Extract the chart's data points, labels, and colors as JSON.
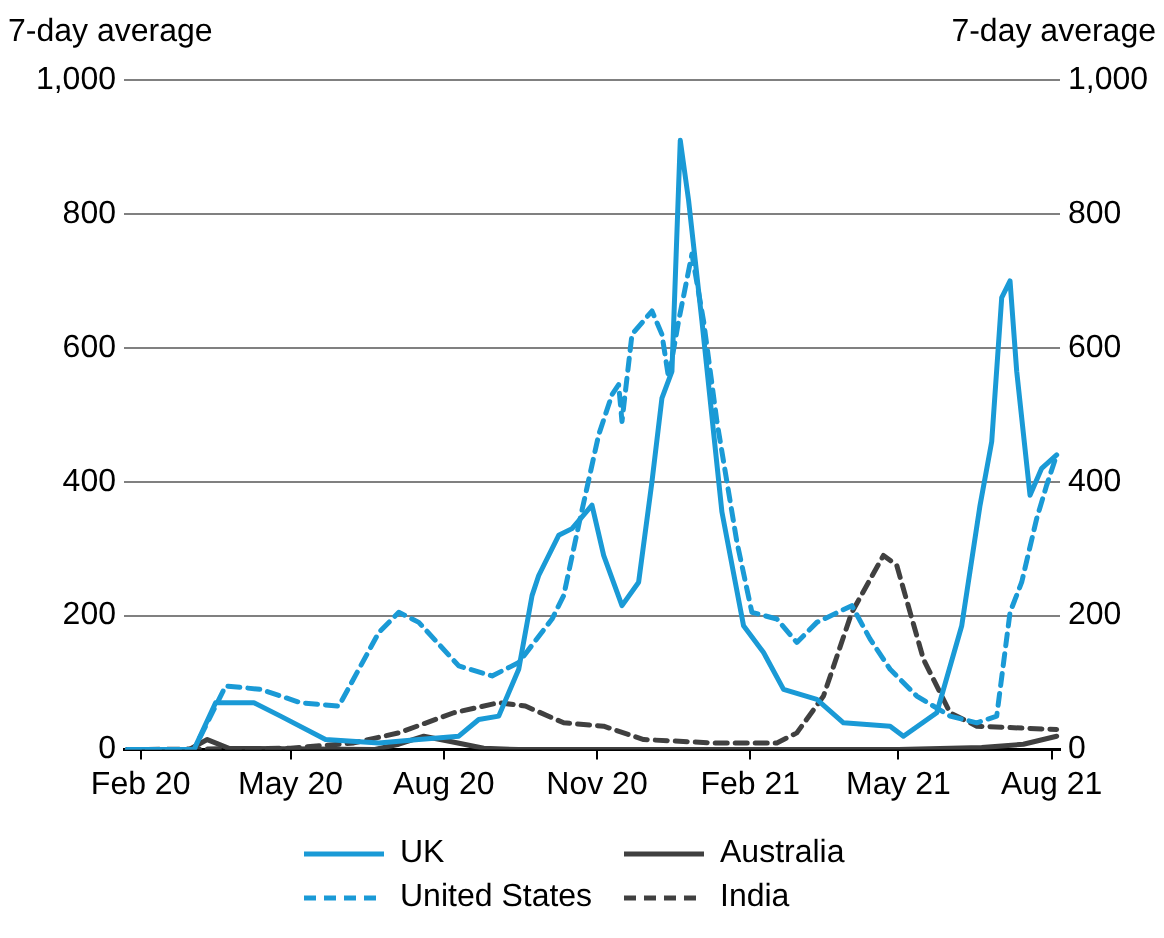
{
  "chart_data": {
    "type": "line",
    "ylabel": "7-day average",
    "y2label": "7-day average",
    "xlim": [
      "2020-01-22",
      "2021-08-06"
    ],
    "xticks": [
      {
        "value": "2020-02-01",
        "label": "Feb 20"
      },
      {
        "value": "2020-05-01",
        "label": "May 20"
      },
      {
        "value": "2020-08-01",
        "label": "Aug 20"
      },
      {
        "value": "2020-11-01",
        "label": "Nov 20"
      },
      {
        "value": "2021-02-01",
        "label": "Feb 21"
      },
      {
        "value": "2021-05-01",
        "label": "May 21"
      },
      {
        "value": "2021-08-01",
        "label": "Aug 21"
      }
    ],
    "ylim": [
      0,
      1000
    ],
    "yticks": [
      0,
      200,
      400,
      600,
      800,
      {
        "value": 1000,
        "label": "1,000"
      }
    ],
    "y2lim": [
      0,
      1000
    ],
    "y2ticks": [
      0,
      200,
      400,
      600,
      800,
      {
        "value": 1000,
        "label": "1,000"
      }
    ],
    "grid": "y",
    "legend": "bottom",
    "marker": "none",
    "series": [
      {
        "name": "UK",
        "color": "#1a9ad6",
        "line_style": "solid",
        "x": [
          "2020-01-24",
          "2020-03-04",
          "2020-03-17",
          "2020-04-09",
          "2020-04-25",
          "2020-05-22",
          "2020-06-23",
          "2020-07-17",
          "2020-08-10",
          "2020-08-22",
          "2020-09-03",
          "2020-09-15",
          "2020-09-23",
          "2020-09-27",
          "2020-10-09",
          "2020-10-17",
          "2020-10-29",
          "2020-11-05",
          "2020-11-16",
          "2020-11-26",
          "2020-12-04",
          "2020-12-10",
          "2020-12-16",
          "2020-12-21",
          "2020-12-26",
          "2021-01-03",
          "2021-01-15",
          "2021-01-28",
          "2021-02-09",
          "2021-02-21",
          "2021-03-13",
          "2021-03-29",
          "2021-04-26",
          "2021-05-04",
          "2021-05-24",
          "2021-06-08",
          "2021-06-19",
          "2021-06-26",
          "2021-07-02",
          "2021-07-07",
          "2021-07-11",
          "2021-07-19",
          "2021-07-26",
          "2021-08-04"
        ],
        "values": [
          0,
          0,
          70,
          70,
          50,
          15,
          10,
          15,
          20,
          45,
          50,
          120,
          230,
          260,
          320,
          330,
          365,
          290,
          215,
          250,
          400,
          525,
          565,
          910,
          820,
          640,
          355,
          185,
          145,
          90,
          75,
          40,
          35,
          20,
          55,
          185,
          365,
          460,
          675,
          700,
          565,
          380,
          420,
          440
        ]
      },
      {
        "name": "Australia",
        "color": "#404040",
        "line_style": "solid",
        "x": [
          "2020-01-24",
          "2020-03-01",
          "2020-03-12",
          "2020-03-25",
          "2020-06-20",
          "2020-07-05",
          "2020-07-20",
          "2020-08-05",
          "2020-08-25",
          "2020-09-15",
          "2021-05-01",
          "2021-06-20",
          "2021-07-15",
          "2021-08-04"
        ],
        "values": [
          0,
          0,
          15,
          2,
          0,
          8,
          20,
          12,
          2,
          0,
          0,
          3,
          8,
          20
        ]
      },
      {
        "name": "United States",
        "color": "#1a9ad6",
        "line_style": "dashed",
        "x": [
          "2020-01-24",
          "2020-03-04",
          "2020-03-23",
          "2020-04-13",
          "2020-05-07",
          "2020-05-30",
          "2020-06-11",
          "2020-06-23",
          "2020-07-05",
          "2020-07-17",
          "2020-08-10",
          "2020-08-30",
          "2020-09-15",
          "2020-10-05",
          "2020-10-12",
          "2020-10-21",
          "2020-11-02",
          "2020-11-10",
          "2020-11-14",
          "2020-11-16",
          "2020-11-22",
          "2020-12-04",
          "2020-12-10",
          "2020-12-14",
          "2020-12-20",
          "2020-12-28",
          "2021-01-04",
          "2021-01-12",
          "2021-01-24",
          "2021-02-02",
          "2021-02-17",
          "2021-03-01",
          "2021-03-13",
          "2021-04-03",
          "2021-04-14",
          "2021-04-26",
          "2021-05-12",
          "2021-06-01",
          "2021-06-17",
          "2021-06-29",
          "2021-07-07",
          "2021-07-14",
          "2021-07-23",
          "2021-07-29",
          "2021-08-04"
        ],
        "values": [
          0,
          0,
          95,
          90,
          70,
          65,
          120,
          175,
          205,
          190,
          125,
          110,
          130,
          195,
          230,
          335,
          470,
          530,
          545,
          490,
          620,
          655,
          620,
          555,
          640,
          740,
          640,
          490,
          310,
          205,
          195,
          160,
          190,
          215,
          165,
          120,
          80,
          50,
          40,
          50,
          205,
          250,
          345,
          395,
          440
        ]
      },
      {
        "name": "India",
        "color": "#404040",
        "line_style": "dashed",
        "x": [
          "2020-01-24",
          "2020-05-01",
          "2020-06-08",
          "2020-07-05",
          "2020-08-07",
          "2020-09-03",
          "2020-09-19",
          "2020-10-12",
          "2020-11-05",
          "2020-11-29",
          "2021-01-09",
          "2021-02-17",
          "2021-03-01",
          "2021-03-17",
          "2021-04-03",
          "2021-04-22",
          "2021-04-30",
          "2021-05-16",
          "2021-06-01",
          "2021-06-17",
          "2021-08-04"
        ],
        "values": [
          0,
          2,
          10,
          25,
          55,
          70,
          65,
          40,
          35,
          15,
          10,
          10,
          25,
          80,
          205,
          290,
          275,
          135,
          55,
          35,
          30
        ]
      }
    ]
  }
}
